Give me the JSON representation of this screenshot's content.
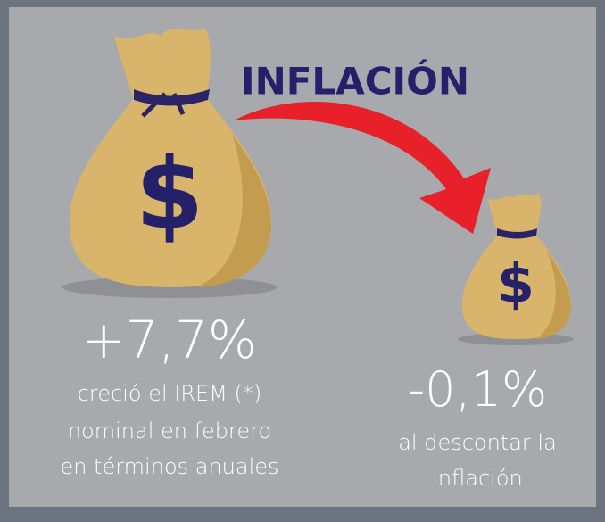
{
  "header": {
    "title": "INFLACIÓN"
  },
  "left": {
    "symbol": "$",
    "value": "+7,7%",
    "description": [
      "creció el IREM (*)",
      "nominal en febrero",
      "en términos anuales"
    ]
  },
  "right": {
    "symbol": "$",
    "value": "-0,1%",
    "description": [
      "al descontar la",
      "inflación"
    ]
  }
}
